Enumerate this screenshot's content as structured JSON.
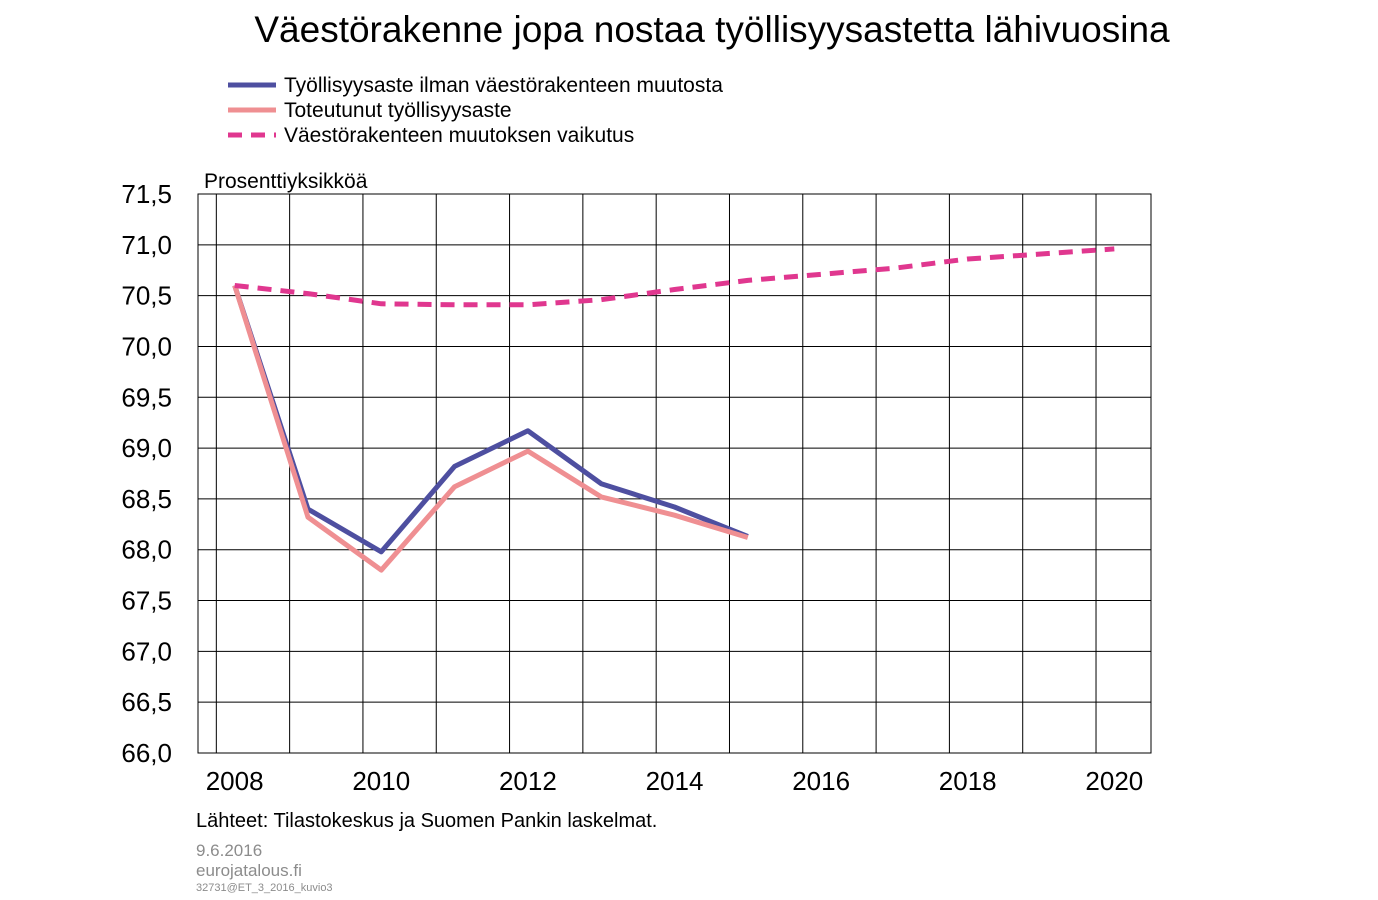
{
  "chart_data": {
    "type": "line",
    "title": "Väestörakenne jopa nostaa työllisyysastetta lähivuosina",
    "ylabel": "Prosenttiyksikköä",
    "ylim": [
      66.0,
      71.5
    ],
    "yticks": [
      "66,0",
      "66,5",
      "67,0",
      "67,5",
      "68,0",
      "68,5",
      "69,0",
      "69,5",
      "70,0",
      "70,5",
      "71,0",
      "71,5"
    ],
    "xlim": [
      2007.75,
      2020.75
    ],
    "xticks": [
      "2008",
      "2010",
      "2012",
      "2014",
      "2016",
      "2018",
      "2020"
    ],
    "grid": true,
    "legend_position": "top",
    "series": [
      {
        "name": "Työllisyysaste ilman väestörakenteen muutosta",
        "color": "#4e4fa0",
        "style": "solid",
        "x": [
          2008.25,
          2009.25,
          2010.25,
          2011.25,
          2012.25,
          2013.25,
          2014.25,
          2015.25
        ],
        "y": [
          70.6,
          68.4,
          67.98,
          68.82,
          69.17,
          68.65,
          68.42,
          68.13
        ]
      },
      {
        "name": "Toteutunut työllisyysaste",
        "color": "#ef8f92",
        "style": "solid",
        "x": [
          2008.25,
          2009.25,
          2010.25,
          2011.25,
          2012.25,
          2013.25,
          2014.25,
          2015.25
        ],
        "y": [
          70.6,
          68.32,
          67.8,
          68.62,
          68.97,
          68.52,
          68.34,
          68.12
        ]
      },
      {
        "name": "Väestörakenteen muutoksen vaikutus",
        "color": "#e0378f",
        "style": "dashed",
        "x": [
          2008.25,
          2009.25,
          2010.25,
          2011.25,
          2012.25,
          2013.25,
          2014.25,
          2015.25,
          2016.25,
          2017.25,
          2018.25,
          2019.25,
          2020.25
        ],
        "y": [
          70.6,
          70.52,
          70.42,
          70.41,
          70.41,
          70.46,
          70.56,
          70.65,
          70.71,
          70.77,
          70.86,
          70.91,
          70.96
        ]
      }
    ]
  },
  "footer": {
    "source": "Lähteet: Tilastokeskus ja Suomen Pankin laskelmat.",
    "date": "9.6.2016",
    "site": "eurojatalous.fi",
    "code": "32731@ET_3_2016_kuvio3"
  }
}
